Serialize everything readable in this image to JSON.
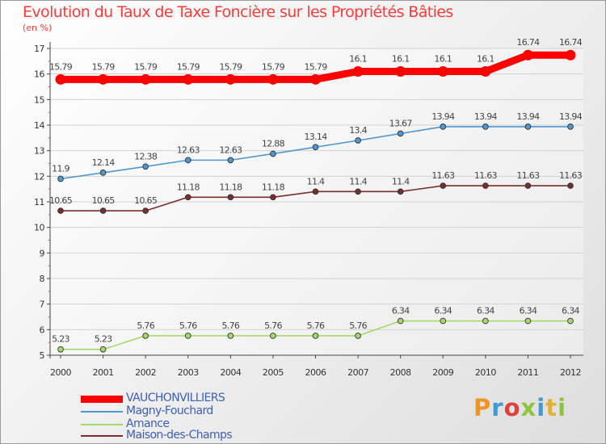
{
  "chart_data": {
    "type": "line",
    "title": "Evolution du Taux de Taxe Foncière sur les Propriétés Bâties",
    "ylabel": "(en %)",
    "xlabel": "",
    "ylim": [
      5,
      17
    ],
    "yticks": [
      5,
      6,
      7,
      8,
      9,
      10,
      11,
      12,
      13,
      14,
      15,
      16,
      17
    ],
    "grid": true,
    "legend_position": "bottom-left",
    "x": [
      "2000",
      "2001",
      "2002",
      "2003",
      "2004",
      "2005",
      "2006",
      "2007",
      "2008",
      "2009",
      "2010",
      "2011",
      "2012"
    ],
    "series": [
      {
        "name": "VAUCHONVILLIERS",
        "color": "#ff0000",
        "values": [
          15.79,
          15.79,
          15.79,
          15.79,
          15.79,
          15.79,
          15.79,
          16.1,
          16.1,
          16.1,
          16.1,
          16.74,
          16.74
        ],
        "labels": [
          "15.79",
          "15.79",
          "15.79",
          "15.79",
          "15.79",
          "15.79",
          "15.79",
          "16.1",
          "16.1",
          "16.1",
          "16.1",
          "16.74",
          "16.74"
        ]
      },
      {
        "name": "Magny-Fouchard",
        "color": "#4f97cf",
        "values": [
          11.9,
          12.14,
          12.38,
          12.63,
          12.63,
          12.88,
          13.14,
          13.4,
          13.67,
          13.94,
          13.94,
          13.94,
          13.94
        ],
        "labels": [
          "11.9",
          "12.14",
          "12.38",
          "12.63",
          "12.63",
          "12.88",
          "13.14",
          "13.4",
          "13.67",
          "13.94",
          "13.94",
          "13.94",
          "13.94"
        ]
      },
      {
        "name": "Amance",
        "color": "#a5d96c",
        "values": [
          5.23,
          5.23,
          5.76,
          5.76,
          5.76,
          5.76,
          5.76,
          5.76,
          6.34,
          6.34,
          6.34,
          6.34,
          6.34
        ],
        "labels": [
          "5.23",
          "5.23",
          "5.76",
          "5.76",
          "5.76",
          "5.76",
          "5.76",
          "5.76",
          "6.34",
          "6.34",
          "6.34",
          "6.34",
          "6.34"
        ]
      },
      {
        "name": "Maison-des-Champs",
        "color": "#7a2d2d",
        "values": [
          10.65,
          10.65,
          10.65,
          11.18,
          11.18,
          11.18,
          11.4,
          11.4,
          11.4,
          11.63,
          11.63,
          11.63,
          11.63
        ],
        "labels": [
          "10.65",
          "10.65",
          "10.65",
          "11.18",
          "11.18",
          "11.18",
          "11.4",
          "11.4",
          "11.4",
          "11.63",
          "11.63",
          "11.63",
          "11.63"
        ]
      }
    ]
  },
  "legend": [
    {
      "label": "VAUCHONVILLIERS",
      "color": "#ff0000"
    },
    {
      "label": "Magny-Fouchard",
      "color": "#4f97cf"
    },
    {
      "label": "Amance",
      "color": "#a5d96c"
    },
    {
      "label": "Maison-des-Champs",
      "color": "#7a2d2d"
    }
  ],
  "logo": {
    "text": "Proxiti",
    "colors": [
      "#f29422",
      "#3d9bd4",
      "#e13e3e",
      "#8fc43f",
      "#3d9bd4",
      "#e1b13e",
      "#8fc43f"
    ]
  }
}
